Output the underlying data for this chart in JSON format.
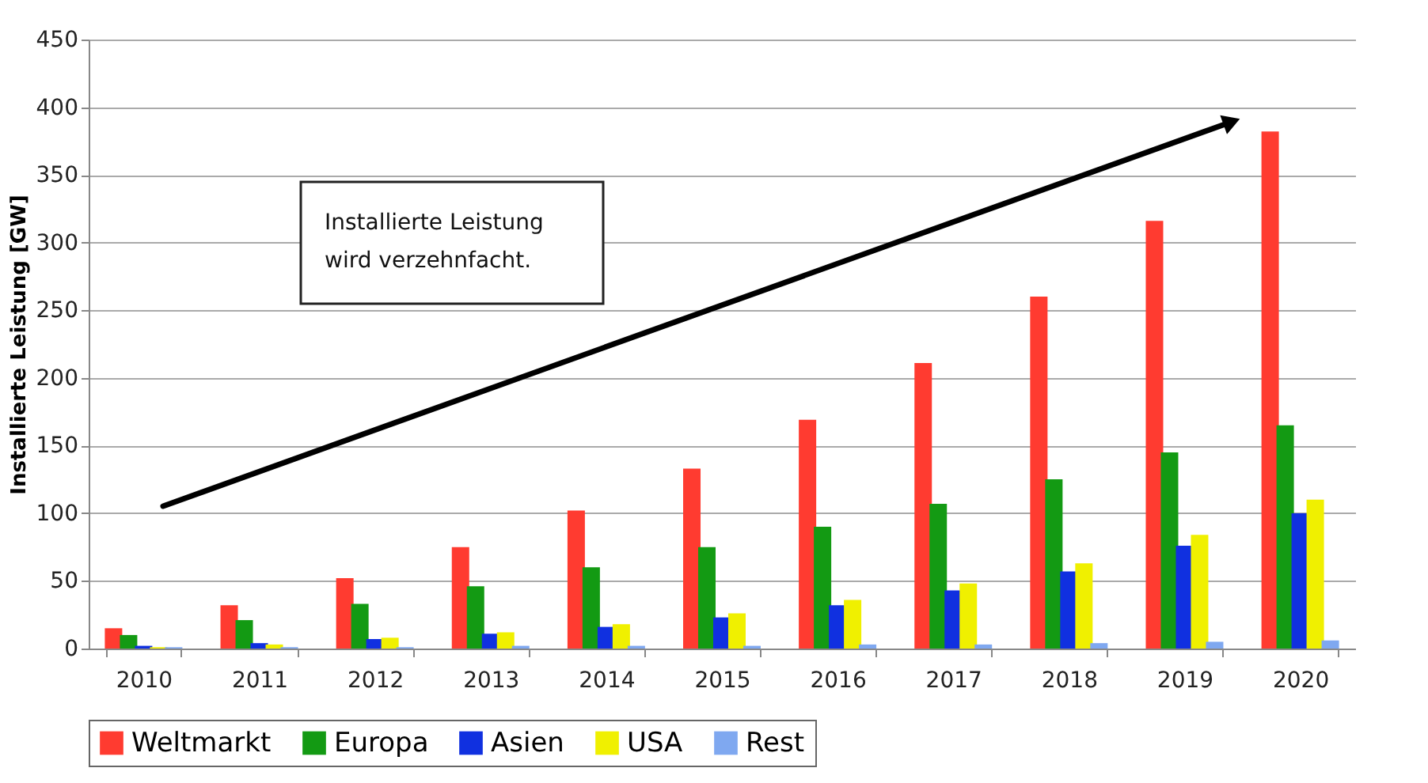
{
  "chart_data": {
    "type": "bar",
    "categories": [
      "2010",
      "2011",
      "2012",
      "2013",
      "2014",
      "2015",
      "2016",
      "2017",
      "2018",
      "2019",
      "2020"
    ],
    "series": [
      {
        "name": "Weltmarkt",
        "color": "#ff3b30",
        "values": [
          15,
          32,
          52,
          75,
          102,
          133,
          169,
          211,
          260,
          316,
          382
        ]
      },
      {
        "name": "Europa",
        "color": "#139a13",
        "values": [
          10,
          21,
          33,
          46,
          60,
          75,
          90,
          107,
          125,
          145,
          165
        ]
      },
      {
        "name": "Asien",
        "color": "#1030e0",
        "values": [
          2,
          4,
          7,
          11,
          16,
          23,
          32,
          43,
          57,
          76,
          100
        ]
      },
      {
        "name": "USA",
        "color": "#f0f000",
        "values": [
          1,
          3,
          8,
          12,
          18,
          26,
          36,
          48,
          63,
          84,
          110
        ]
      },
      {
        "name": "Rest",
        "color": "#7fa8f0",
        "values": [
          1,
          1,
          1,
          2,
          2,
          2,
          3,
          3,
          4,
          5,
          6
        ]
      }
    ],
    "ylabel": "Installierte Leistung [GW]",
    "ylim": [
      0,
      450
    ],
    "yticks": [
      0,
      50,
      100,
      150,
      200,
      250,
      300,
      350,
      400,
      450
    ],
    "grid": "y",
    "legend": "bottom",
    "annotations": [
      "Installierte Leistung\nwird verzehnfacht."
    ]
  }
}
